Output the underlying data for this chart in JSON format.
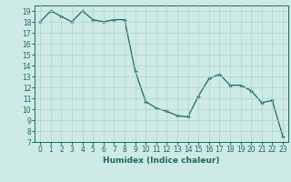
{
  "x": [
    0,
    1,
    2,
    3,
    4,
    5,
    6,
    7,
    8,
    9,
    10,
    11,
    12,
    13,
    14,
    15,
    16,
    17,
    18,
    19,
    20,
    21,
    22,
    23
  ],
  "y": [
    18.0,
    19.0,
    18.5,
    18.0,
    19.0,
    18.2,
    18.0,
    18.2,
    18.2,
    13.5,
    10.7,
    10.1,
    9.8,
    9.4,
    9.3,
    11.2,
    12.8,
    13.2,
    12.2,
    12.2,
    11.7,
    10.6,
    10.8,
    7.5
  ],
  "line_color": "#1a6b5a",
  "marker": "D",
  "marker_size": 1.8,
  "xlabel": "Humidex (Indice chaleur)",
  "xlim": [
    -0.5,
    23.5
  ],
  "ylim": [
    7,
    19.5
  ],
  "yticks": [
    7,
    8,
    9,
    10,
    11,
    12,
    13,
    14,
    15,
    16,
    17,
    18,
    19
  ],
  "xticks": [
    0,
    1,
    2,
    3,
    4,
    5,
    6,
    7,
    8,
    9,
    10,
    11,
    12,
    13,
    14,
    15,
    16,
    17,
    18,
    19,
    20,
    21,
    22,
    23
  ],
  "background_color": "#ceeae4",
  "grid_color": "#aed4cc",
  "xlabel_fontsize": 6.5,
  "tick_fontsize": 5.5,
  "linewidth": 0.9
}
